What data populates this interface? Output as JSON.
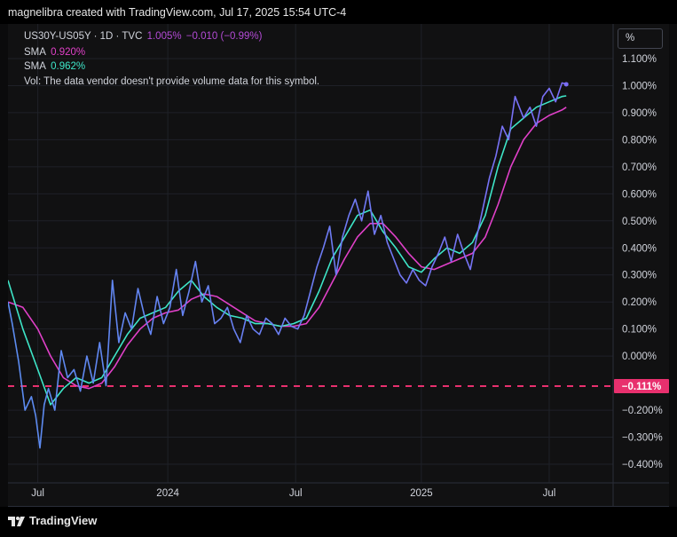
{
  "header": {
    "attribution": "magnelibra created with TradingView.com, Jul 17, 2025 15:54 UTC-4"
  },
  "legend": {
    "symbol": "US30Y-US05Y · 1D · TVC",
    "last": "1.005%",
    "change": "−0.010 (−0.99%)",
    "sma1_label": "SMA",
    "sma1_value": "0.920%",
    "sma2_label": "SMA",
    "sma2_value": "0.962%",
    "vol_text": "Vol: The data vendor doesn't provide volume data for this symbol."
  },
  "scale_button": {
    "label": "%"
  },
  "footer": {
    "brand": "TradingView"
  },
  "colors": {
    "price": "#7b6ef6",
    "price_early": "#5b8cf0",
    "sma_slow": "#e040c8",
    "sma_fast": "#3ee6c8",
    "ref_line": "#e8306e",
    "legend_last": "#b44bd6",
    "axis_text": "#d1d4dc"
  },
  "chart_data": {
    "type": "line",
    "symbol": "US30Y-US05Y",
    "timeframe": "1D",
    "y_unit": "%",
    "x_ticks": [
      {
        "t": 4.2,
        "label": "Jul"
      },
      {
        "t": 10.3,
        "label": "2024"
      },
      {
        "t": 16.3,
        "label": "Jul"
      },
      {
        "t": 22.2,
        "label": "2025"
      },
      {
        "t": 28.2,
        "label": "Jul"
      }
    ],
    "y_ticks": [
      "1.100%",
      "1.000%",
      "0.900%",
      "0.800%",
      "0.700%",
      "0.600%",
      "0.500%",
      "0.400%",
      "0.300%",
      "0.200%",
      "0.100%",
      "0.000%",
      "−0.200%",
      "−0.300%",
      "−0.400%"
    ],
    "ylim": [
      -0.45,
      1.15
    ],
    "xlim": [
      2.8,
      31.2
    ],
    "reference_line": {
      "value": -0.111,
      "label": "−0.111%"
    },
    "series": [
      {
        "role": "price",
        "x": [
          2.8,
          3.0,
          3.3,
          3.6,
          3.9,
          4.1,
          4.3,
          4.5,
          4.7,
          5.0,
          5.3,
          5.6,
          5.9,
          6.2,
          6.5,
          6.8,
          7.1,
          7.4,
          7.7,
          8.0,
          8.3,
          8.6,
          8.9,
          9.2,
          9.5,
          9.8,
          10.1,
          10.4,
          10.7,
          11.0,
          11.3,
          11.6,
          11.9,
          12.2,
          12.5,
          12.8,
          13.1,
          13.4,
          13.7,
          14.0,
          14.3,
          14.6,
          14.9,
          15.2,
          15.5,
          15.8,
          16.1,
          16.4,
          16.7,
          17.0,
          17.3,
          17.6,
          17.9,
          18.2,
          18.5,
          18.8,
          19.1,
          19.4,
          19.7,
          20.0,
          20.3,
          20.6,
          20.9,
          21.2,
          21.5,
          21.8,
          22.1,
          22.4,
          22.7,
          23.0,
          23.3,
          23.6,
          23.9,
          24.2,
          24.5,
          24.8,
          25.1,
          25.4,
          25.7,
          26.0,
          26.3,
          26.6,
          27.0,
          27.3,
          27.6,
          27.9,
          28.2,
          28.5,
          28.8,
          29.0
        ],
        "values": [
          0.2,
          0.12,
          -0.02,
          -0.2,
          -0.15,
          -0.22,
          -0.34,
          -0.18,
          -0.12,
          -0.2,
          0.02,
          -0.08,
          -0.05,
          -0.13,
          0.0,
          -0.1,
          0.05,
          -0.11,
          0.28,
          0.05,
          0.16,
          0.1,
          0.25,
          0.15,
          0.08,
          0.22,
          0.12,
          0.18,
          0.32,
          0.15,
          0.24,
          0.35,
          0.2,
          0.26,
          0.12,
          0.14,
          0.18,
          0.1,
          0.05,
          0.15,
          0.1,
          0.08,
          0.14,
          0.12,
          0.08,
          0.14,
          0.11,
          0.1,
          0.15,
          0.24,
          0.33,
          0.4,
          0.48,
          0.3,
          0.44,
          0.52,
          0.58,
          0.5,
          0.61,
          0.45,
          0.52,
          0.42,
          0.36,
          0.3,
          0.27,
          0.32,
          0.28,
          0.26,
          0.33,
          0.38,
          0.44,
          0.35,
          0.45,
          0.38,
          0.32,
          0.44,
          0.55,
          0.66,
          0.74,
          0.85,
          0.8,
          0.96,
          0.88,
          0.92,
          0.85,
          0.96,
          0.99,
          0.94,
          1.01,
          1.005
        ]
      },
      {
        "role": "sma_fast",
        "x": [
          2.8,
          3.5,
          4.2,
          4.8,
          5.4,
          6.0,
          6.6,
          7.2,
          7.8,
          8.4,
          9.0,
          9.6,
          10.2,
          10.8,
          11.4,
          12.0,
          12.6,
          13.2,
          13.8,
          14.4,
          15.0,
          15.6,
          16.2,
          16.8,
          17.4,
          18.0,
          18.6,
          19.2,
          19.8,
          20.4,
          21.0,
          21.6,
          22.2,
          22.8,
          23.4,
          24.0,
          24.6,
          25.2,
          25.8,
          26.4,
          27.0,
          27.6,
          28.2,
          28.8,
          29.0
        ],
        "values": [
          0.28,
          0.1,
          -0.05,
          -0.18,
          -0.12,
          -0.08,
          -0.1,
          -0.08,
          0.0,
          0.08,
          0.14,
          0.16,
          0.18,
          0.24,
          0.28,
          0.22,
          0.18,
          0.15,
          0.14,
          0.12,
          0.12,
          0.11,
          0.12,
          0.14,
          0.24,
          0.36,
          0.44,
          0.52,
          0.54,
          0.46,
          0.4,
          0.33,
          0.31,
          0.36,
          0.4,
          0.38,
          0.42,
          0.52,
          0.7,
          0.84,
          0.88,
          0.92,
          0.94,
          0.96,
          0.962
        ]
      },
      {
        "role": "sma_slow",
        "x": [
          2.8,
          3.5,
          4.2,
          4.8,
          5.4,
          6.0,
          6.6,
          7.2,
          7.8,
          8.4,
          9.0,
          9.6,
          10.2,
          10.8,
          11.4,
          12.0,
          12.6,
          13.2,
          13.8,
          14.4,
          15.0,
          15.6,
          16.2,
          16.8,
          17.4,
          18.0,
          18.6,
          19.2,
          19.8,
          20.4,
          21.0,
          21.6,
          22.2,
          22.8,
          23.4,
          24.0,
          24.6,
          25.2,
          25.8,
          26.4,
          27.0,
          27.6,
          28.2,
          28.8,
          29.0
        ],
        "values": [
          0.2,
          0.18,
          0.1,
          0.0,
          -0.08,
          -0.11,
          -0.12,
          -0.1,
          -0.04,
          0.04,
          0.1,
          0.14,
          0.16,
          0.17,
          0.21,
          0.23,
          0.22,
          0.19,
          0.16,
          0.13,
          0.12,
          0.11,
          0.11,
          0.12,
          0.18,
          0.27,
          0.36,
          0.44,
          0.49,
          0.49,
          0.44,
          0.38,
          0.33,
          0.32,
          0.34,
          0.36,
          0.38,
          0.44,
          0.56,
          0.7,
          0.8,
          0.86,
          0.89,
          0.91,
          0.92
        ]
      }
    ]
  }
}
